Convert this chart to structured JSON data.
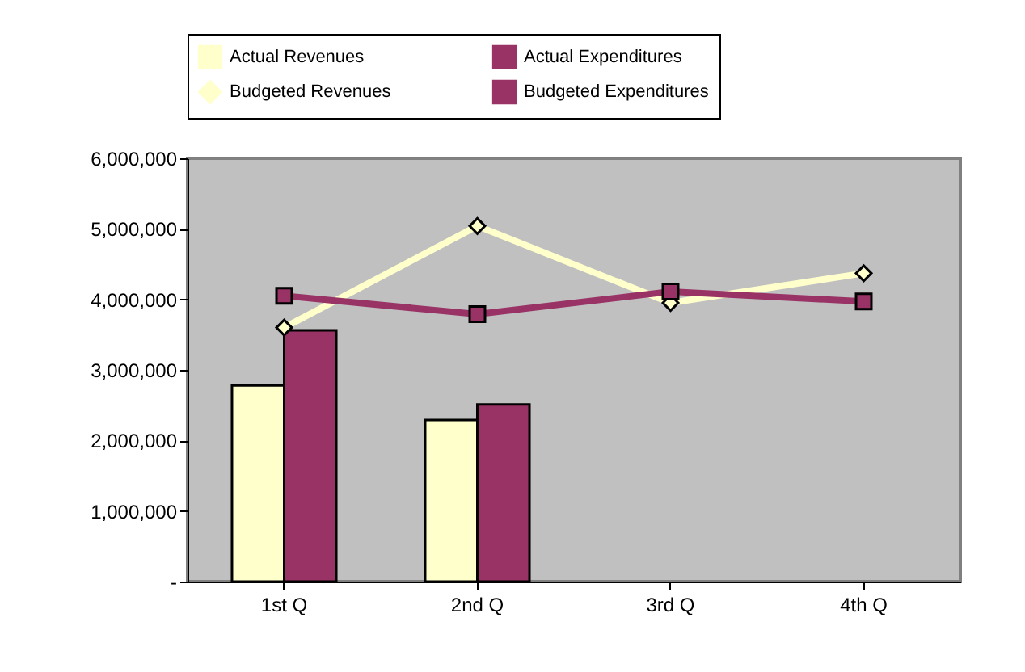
{
  "chart_data": {
    "type": "bar",
    "categories": [
      "1st Q",
      "2nd Q",
      "3rd Q",
      "4th Q"
    ],
    "series": [
      {
        "name": "Actual Revenues",
        "color": "#ffffcc",
        "values": [
          2780000,
          2290000,
          null,
          null
        ]
      },
      {
        "name": "Actual Expenditures",
        "color": "#993366",
        "values": [
          3560000,
          2510000,
          null,
          null
        ]
      },
      {
        "name": "Budgeted Revenues",
        "type": "line",
        "marker": "diamond",
        "color": "#ffffcc",
        "values": [
          3600000,
          5040000,
          3950000,
          4370000
        ]
      },
      {
        "name": "Budgeted Expenditures",
        "type": "line",
        "marker": "square",
        "color": "#993366",
        "values": [
          4050000,
          3790000,
          4110000,
          3970000
        ]
      }
    ],
    "ylim": [
      0,
      6000000
    ],
    "yticks": [
      {
        "value": 0,
        "label": "-"
      },
      {
        "value": 1000000,
        "label": "1,000,000"
      },
      {
        "value": 2000000,
        "label": "2,000,000"
      },
      {
        "value": 3000000,
        "label": "3,000,000"
      },
      {
        "value": 4000000,
        "label": "4,000,000"
      },
      {
        "value": 5000000,
        "label": "5,000,000"
      },
      {
        "value": 6000000,
        "label": "6,000,000"
      }
    ],
    "grid": false,
    "legend": "top"
  }
}
